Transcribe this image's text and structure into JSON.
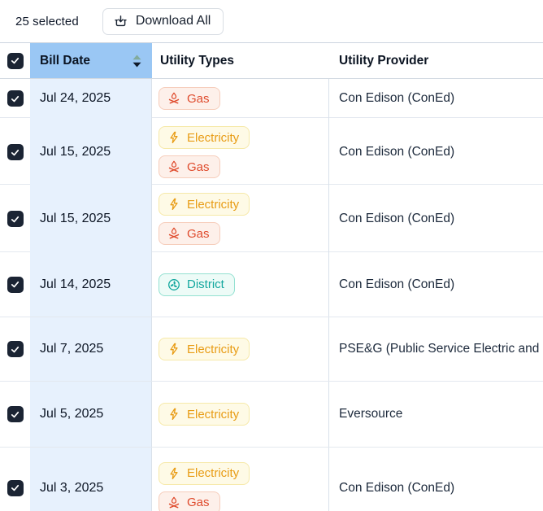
{
  "toolbar": {
    "selected_count": "25 selected",
    "download_all_label": "Download All"
  },
  "table": {
    "columns": {
      "bill_date": "Bill Date",
      "utility_types": "Utility Types",
      "utility_provider": "Utility Provider"
    },
    "select_all_checked": true,
    "badge_defs": {
      "electricity": {
        "label": "Electricity",
        "text_color": "#e89c15",
        "bg": "#fefae6",
        "border": "#f6e9a9",
        "icon": "bolt-icon"
      },
      "gas": {
        "label": "Gas",
        "text_color": "#df4b2d",
        "bg": "#fdf0ea",
        "border": "#f6cdbb",
        "icon": "campfire-icon"
      },
      "district": {
        "label": "District",
        "text_color": "#12a79e",
        "bg": "#edfbf7",
        "border": "#93e1d1",
        "icon": "fan-icon"
      }
    },
    "rows": [
      {
        "checked": true,
        "date": "Jul 24, 2025",
        "types": [
          "gas"
        ],
        "provider": "Con Edison (ConEd)"
      },
      {
        "checked": true,
        "date": "Jul 15, 2025",
        "types": [
          "electricity",
          "gas"
        ],
        "provider": "Con Edison (ConEd)"
      },
      {
        "checked": true,
        "date": "Jul 15, 2025",
        "types": [
          "electricity",
          "gas"
        ],
        "provider": "Con Edison (ConEd)"
      },
      {
        "checked": true,
        "date": "Jul 14, 2025",
        "types": [
          "district"
        ],
        "provider": "Con Edison (ConEd)"
      },
      {
        "checked": true,
        "date": "Jul 7, 2025",
        "types": [
          "electricity"
        ],
        "provider": "PSE&G (Public Service Electric and Gas)"
      },
      {
        "checked": true,
        "date": "Jul 5, 2025",
        "types": [
          "electricity"
        ],
        "provider": "Eversource"
      },
      {
        "checked": true,
        "date": "Jul 3, 2025",
        "types": [
          "electricity",
          "gas"
        ],
        "provider": "Con Edison (ConEd)"
      }
    ]
  },
  "colors": {
    "header_highlight": "#9ac7f4",
    "date_cell_bg": "#e7f1fd",
    "checkbox_bg": "#1b2433",
    "sort_up_arrow": "#82ab9c",
    "sort_down_arrow": "#101b2a"
  }
}
